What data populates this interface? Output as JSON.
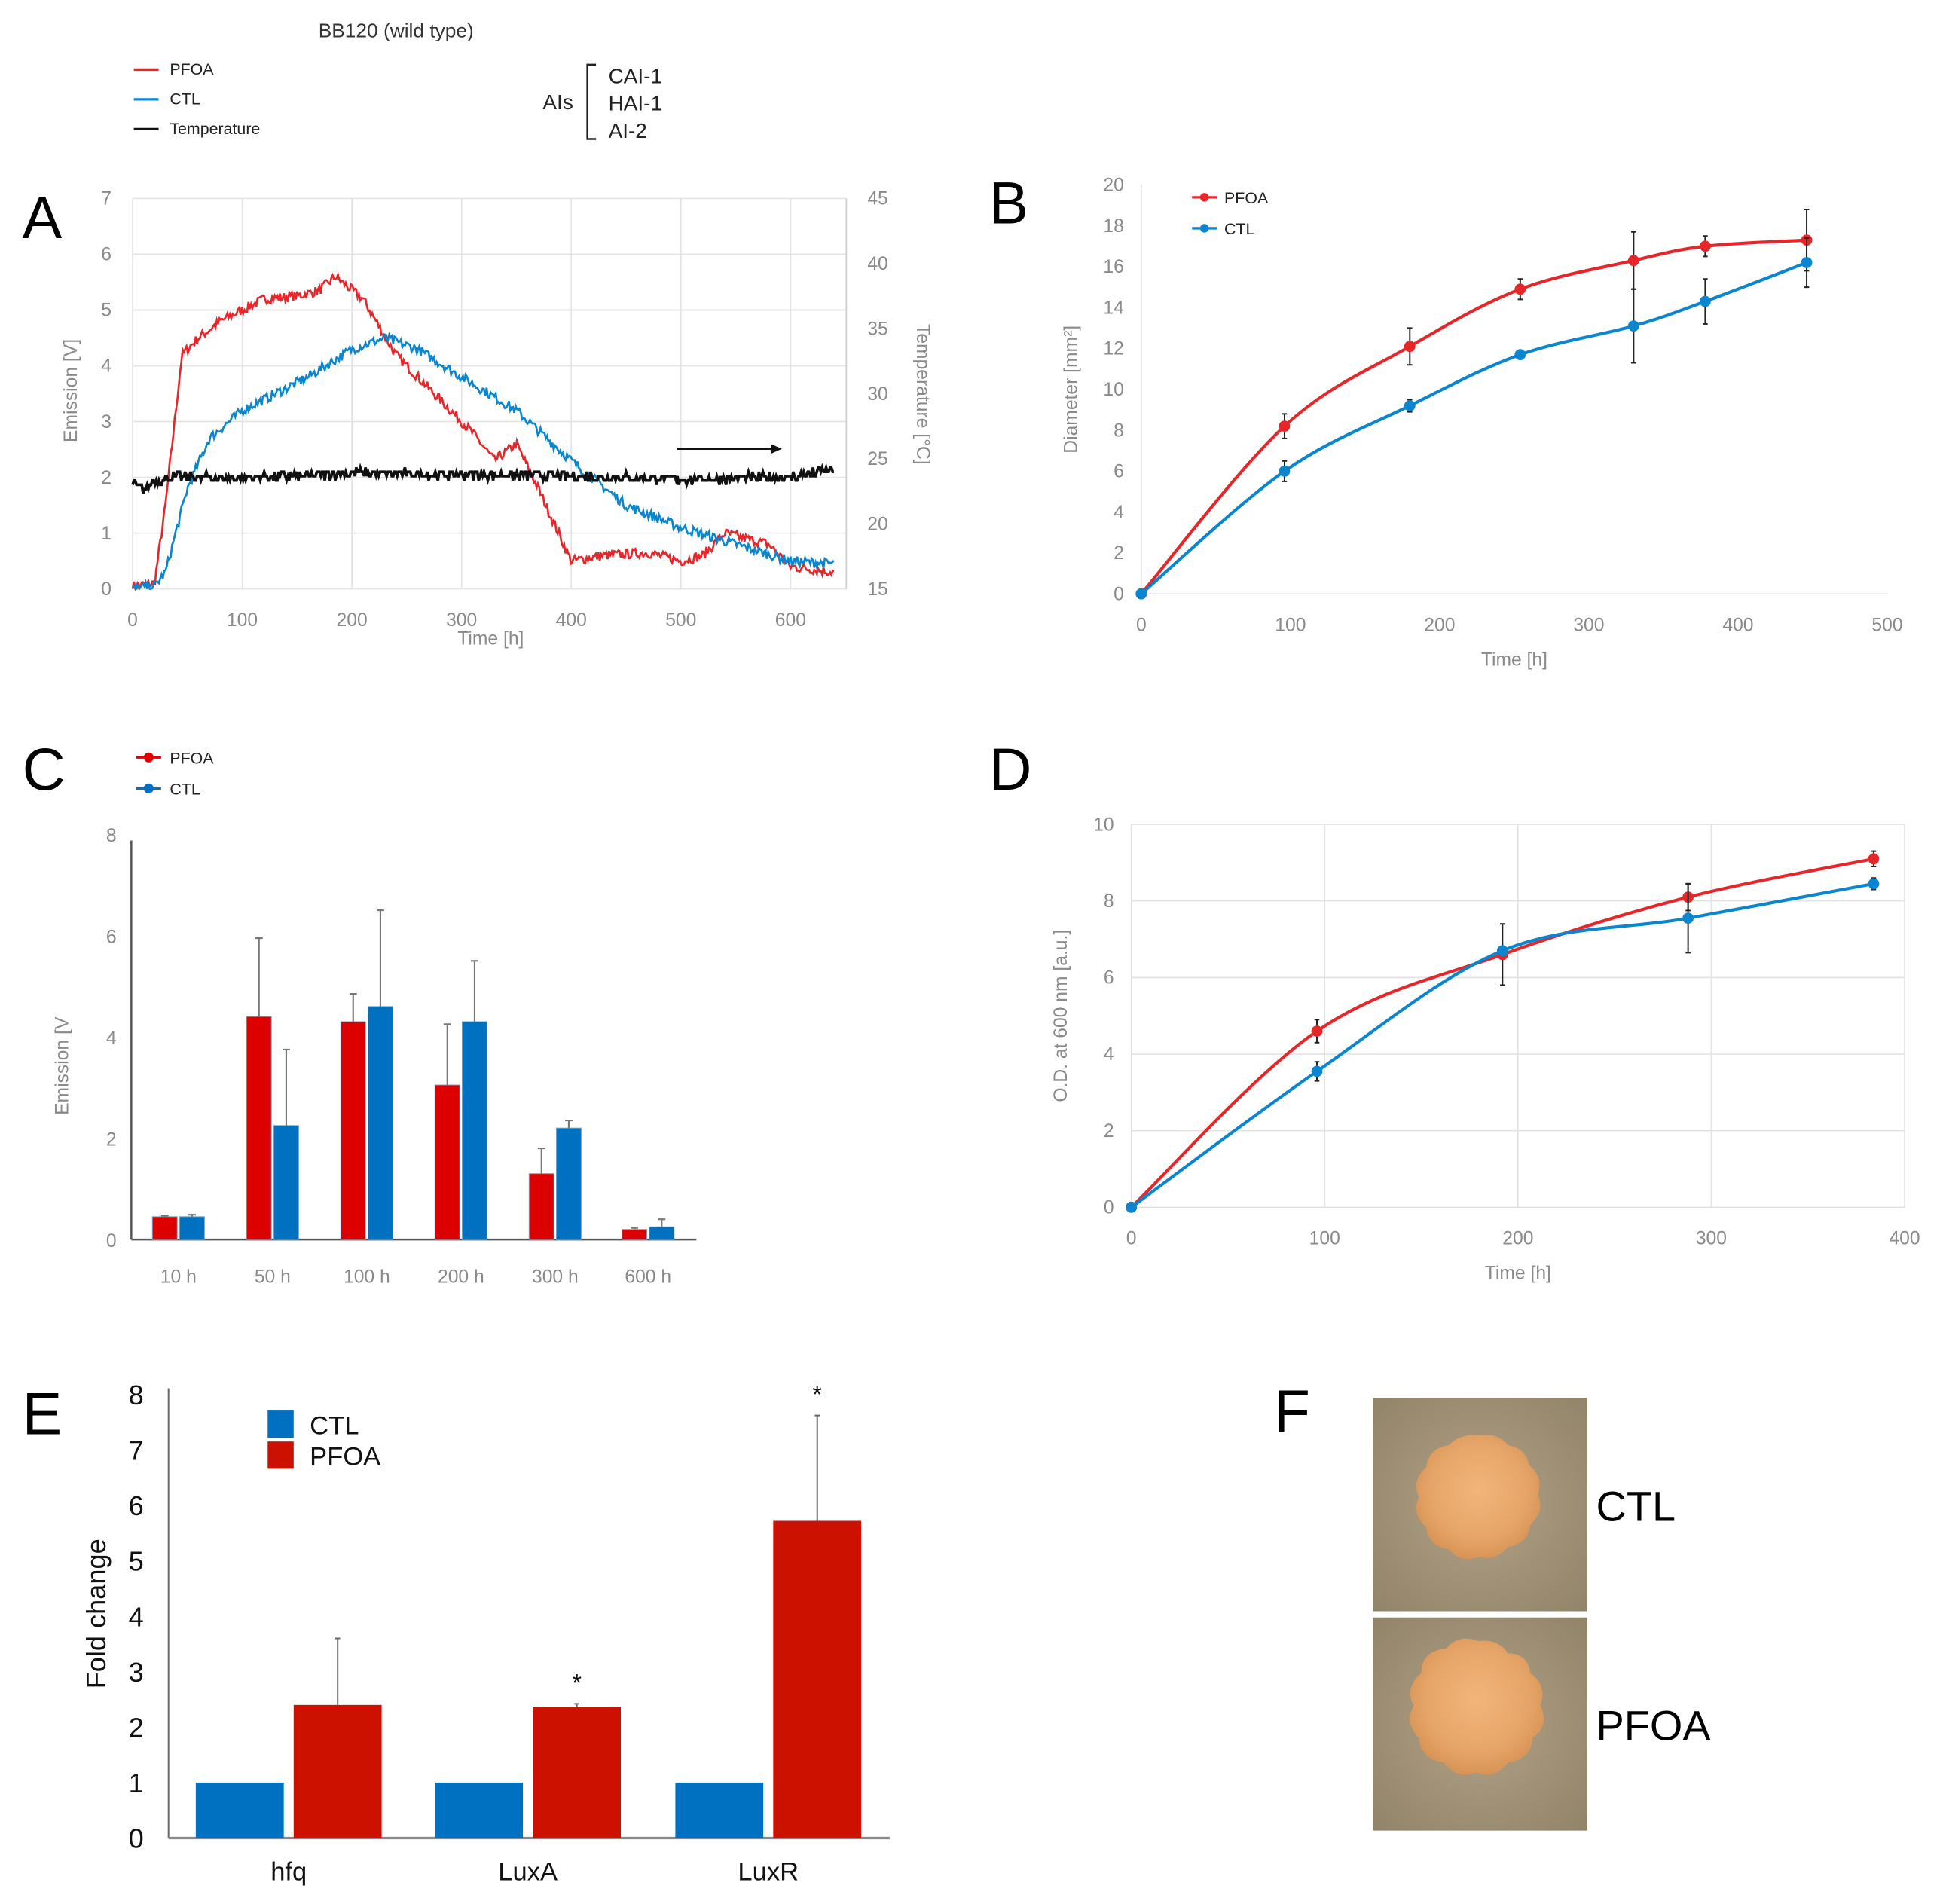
{
  "header": {
    "title": "BB120 (wild type)",
    "legend": [
      {
        "label": "PFOA",
        "color": "#e8262a"
      },
      {
        "label": "CTL",
        "color": "#0a86d0"
      },
      {
        "label": "Temperature",
        "color": "#111111"
      }
    ],
    "ais_label": "AIs",
    "ais_items": [
      "CAI-1",
      "HAI-1",
      "AI-2"
    ]
  },
  "panels": {
    "A": "A",
    "B": "B",
    "C": "C",
    "D": "D",
    "E": "E",
    "F": "F"
  },
  "photos": {
    "top_label": "CTL",
    "bottom_label": "PFOA"
  },
  "chart_data": [
    {
      "id": "A",
      "type": "line",
      "xlabel": "Time [h]",
      "ylabel": "Emission [V]",
      "y2label": "Temperature [°C]",
      "xlim": [
        0,
        650
      ],
      "ylim": [
        0,
        7
      ],
      "y2lim": [
        15,
        45
      ],
      "xticks": [
        0,
        100,
        200,
        300,
        400,
        500,
        600
      ],
      "yticks": [
        0,
        1,
        2,
        3,
        4,
        5,
        6,
        7
      ],
      "y2ticks": [
        15,
        20,
        25,
        30,
        35,
        40,
        45
      ],
      "grid": true,
      "annotation": "arrow pointing right at ~500–590 h",
      "series": [
        {
          "name": "PFOA",
          "color": "#e8262a",
          "axis": "left",
          "x": [
            0,
            20,
            30,
            45,
            60,
            80,
            100,
            120,
            150,
            170,
            185,
            210,
            240,
            280,
            310,
            330,
            350,
            370,
            400,
            430,
            470,
            500,
            520,
            540,
            560,
            580,
            600,
            640
          ],
          "y": [
            0.05,
            0.1,
            1.5,
            4.2,
            4.5,
            4.8,
            5.0,
            5.2,
            5.25,
            5.35,
            5.6,
            5.2,
            4.2,
            3.4,
            2.8,
            2.3,
            2.6,
            1.8,
            0.5,
            0.6,
            0.65,
            0.5,
            0.6,
            1.0,
            0.9,
            0.8,
            0.4,
            0.3
          ]
        },
        {
          "name": "CTL",
          "color": "#0a86d0",
          "axis": "left",
          "x": [
            0,
            20,
            30,
            50,
            70,
            100,
            130,
            160,
            200,
            230,
            260,
            300,
            350,
            400,
            450,
            500,
            550,
            600,
            640
          ],
          "y": [
            0.0,
            0.05,
            0.3,
            1.8,
            2.7,
            3.2,
            3.5,
            3.8,
            4.3,
            4.5,
            4.3,
            3.8,
            3.2,
            2.3,
            1.5,
            1.1,
            0.8,
            0.5,
            0.45
          ]
        },
        {
          "name": "Temperature",
          "color": "#111111",
          "axis": "right",
          "x": [
            0,
            10,
            20,
            40,
            100,
            200,
            300,
            400,
            500,
            600,
            640
          ],
          "y": [
            23.2,
            22.6,
            23.3,
            23.6,
            23.5,
            23.9,
            23.8,
            23.7,
            23.4,
            23.6,
            24.2
          ]
        }
      ]
    },
    {
      "id": "B",
      "type": "line",
      "xlabel": "Time [h]",
      "ylabel": "Diameter [mm²]",
      "xlim": [
        0,
        500
      ],
      "ylim": [
        0,
        20
      ],
      "xticks": [
        0,
        100,
        200,
        300,
        400,
        500
      ],
      "yticks": [
        0,
        2,
        4,
        6,
        8,
        10,
        12,
        14,
        16,
        18,
        20
      ],
      "grid": false,
      "legend": "top-left",
      "series": [
        {
          "name": "PFOA",
          "color": "#e8262a",
          "x": [
            0,
            96,
            180,
            254,
            330,
            378,
            446
          ],
          "y": [
            0,
            8.2,
            12.1,
            14.9,
            16.3,
            17.0,
            17.3
          ],
          "err": [
            0,
            0.6,
            0.9,
            0.5,
            1.4,
            0.5,
            1.5
          ]
        },
        {
          "name": "CTL",
          "color": "#0a86d0",
          "x": [
            0,
            96,
            180,
            254,
            330,
            378,
            446
          ],
          "y": [
            0,
            6.0,
            9.2,
            11.7,
            13.1,
            14.3,
            16.2
          ],
          "err": [
            0,
            0.5,
            0.3,
            0.2,
            1.8,
            1.1,
            1.2
          ]
        }
      ]
    },
    {
      "id": "C",
      "type": "bar",
      "ylabel": "Emission [V",
      "ylim": [
        0,
        8
      ],
      "yticks": [
        0,
        2,
        4,
        6,
        8
      ],
      "categories": [
        "10 h",
        "50 h",
        "100 h",
        "200 h",
        "300 h",
        "600 h"
      ],
      "legend": "top-left",
      "series": [
        {
          "name": "PFOA",
          "color": "#dd0000",
          "values": [
            0.45,
            4.4,
            4.3,
            3.05,
            1.3,
            0.2
          ],
          "err": [
            0.02,
            1.55,
            0.55,
            1.2,
            0.5,
            0.03
          ]
        },
        {
          "name": "CTL",
          "color": "#0070c0",
          "values": [
            0.45,
            2.25,
            4.6,
            4.3,
            2.2,
            0.25
          ],
          "err": [
            0.04,
            1.5,
            1.9,
            1.2,
            0.15,
            0.15
          ]
        }
      ]
    },
    {
      "id": "D",
      "type": "line",
      "xlabel": "Time [h]",
      "ylabel": "O.D. at 600 nm [a.u.]",
      "xlim": [
        0,
        400
      ],
      "ylim": [
        0,
        10
      ],
      "xticks": [
        0,
        100,
        200,
        300,
        400
      ],
      "yticks": [
        0,
        2,
        4,
        6,
        8,
        10
      ],
      "grid": true,
      "series": [
        {
          "color": "#e8262a",
          "x": [
            0,
            96,
            192,
            288,
            384
          ],
          "y": [
            0,
            4.6,
            6.6,
            8.1,
            9.1
          ],
          "err": [
            0,
            0.3,
            0.8,
            0.35,
            0.2
          ]
        },
        {
          "color": "#0a86d0",
          "x": [
            0,
            96,
            192,
            288,
            384
          ],
          "y": [
            0,
            3.55,
            6.7,
            7.55,
            8.45
          ],
          "err": [
            0,
            0.25,
            0.1,
            0.9,
            0.15
          ]
        }
      ]
    },
    {
      "id": "E",
      "type": "bar",
      "ylabel": "Fold change",
      "ylim": [
        0,
        8
      ],
      "yticks": [
        0,
        1,
        2,
        3,
        4,
        5,
        6,
        7,
        8
      ],
      "categories": [
        "hfq",
        "LuxA",
        "LuxR"
      ],
      "legend": "top-left",
      "significance": [
        "",
        "*",
        "*"
      ],
      "series": [
        {
          "name": "CTL",
          "color": "#0070c0",
          "values": [
            1,
            1,
            1
          ]
        },
        {
          "name": "PFOA",
          "color": "#cc1100",
          "values": [
            2.4,
            2.37,
            5.72
          ],
          "err": [
            1.2,
            0.05,
            1.9
          ]
        }
      ]
    }
  ]
}
